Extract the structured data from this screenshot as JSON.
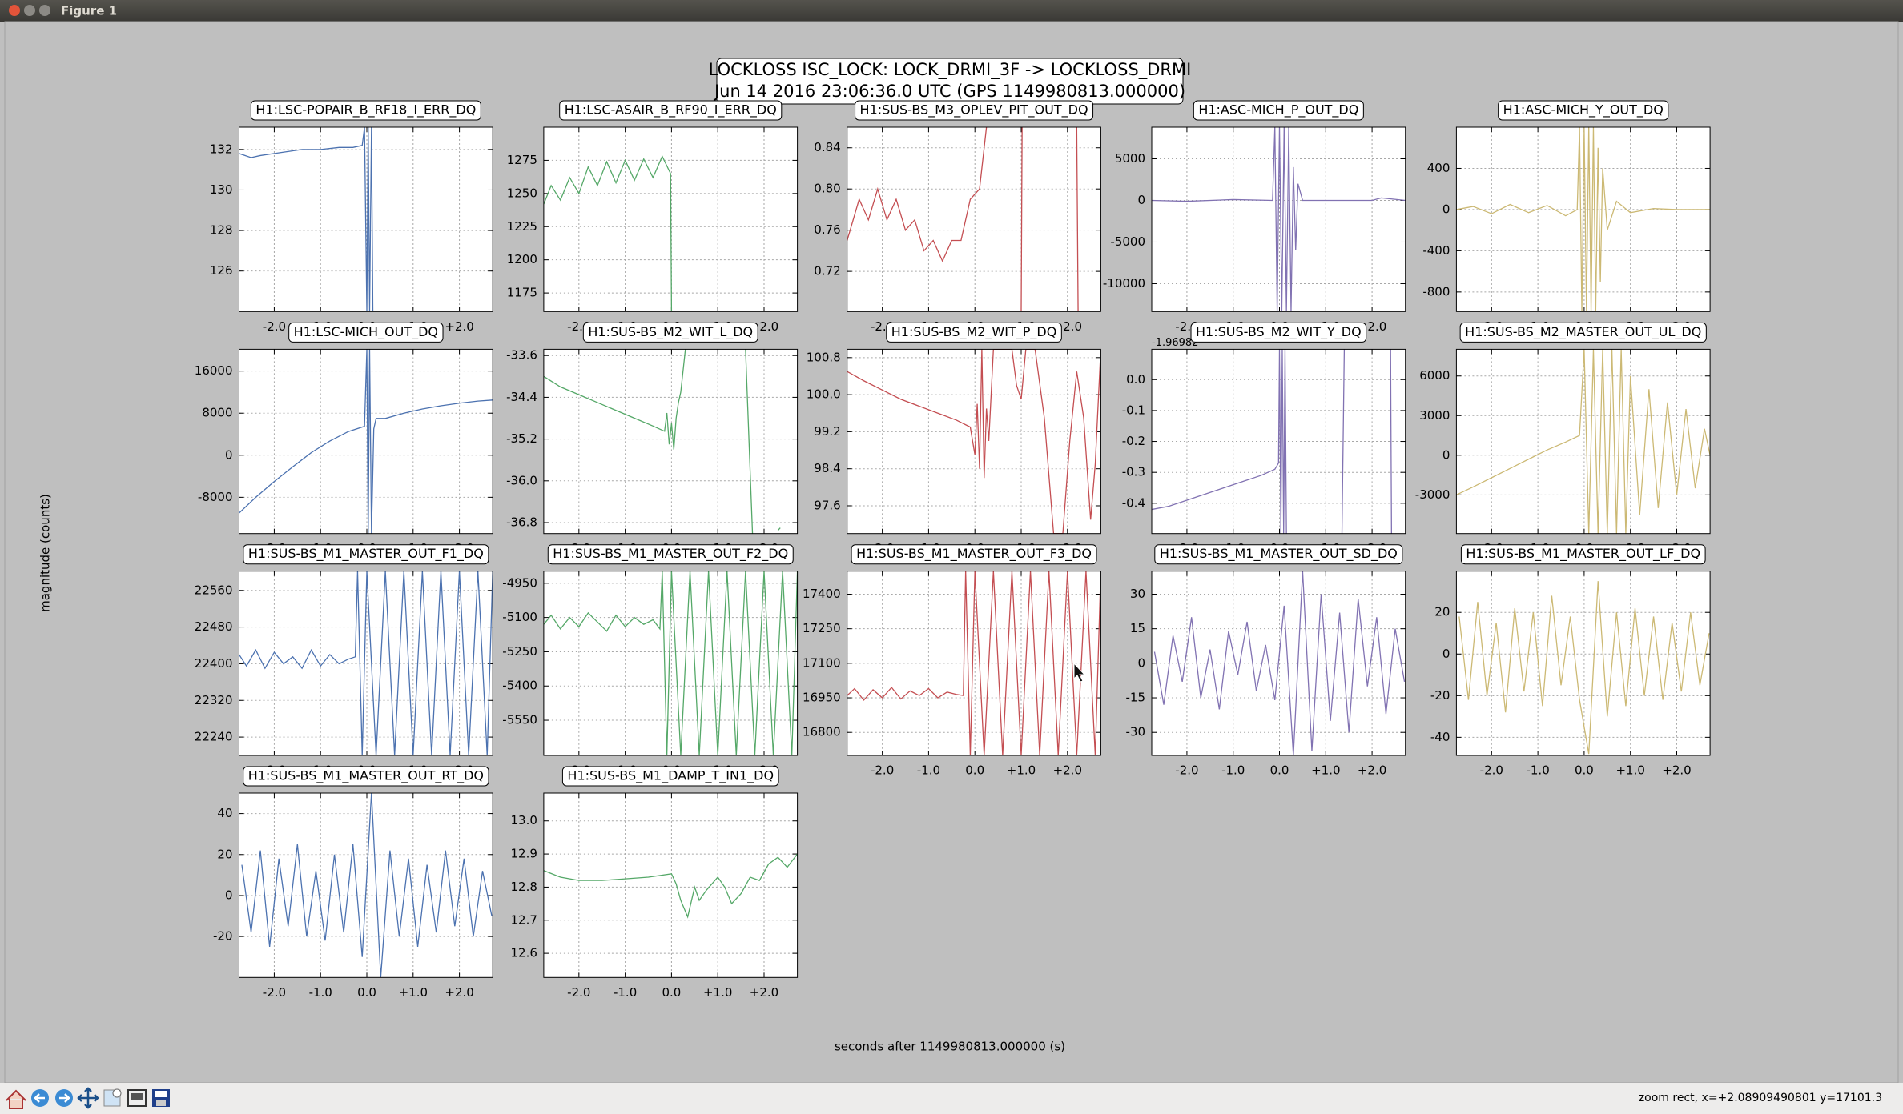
{
  "window": {
    "title": "Figure 1"
  },
  "figure": {
    "title": "LOCKLOSS ISC_LOCK: LOCK_DRMI_3F -> LOCKLOSS_DRMI",
    "subtitle": "Jun 14 2016 23:06:36.0 UTC (GPS 1149980813.000000)",
    "ylabel": "magnitude (counts)"
  },
  "x_axis": {
    "label": "seconds after 1149980813.000000 (s)",
    "xlim": [
      -2.76,
      2.72
    ],
    "xticks": [
      {
        "value": -2,
        "label": "-2.0"
      },
      {
        "value": -1,
        "label": "-1.0"
      },
      {
        "value": 0,
        "label": "0.0"
      },
      {
        "value": 1,
        "label": "+1.0"
      },
      {
        "value": 2,
        "label": "+2.0"
      }
    ]
  },
  "toolbar": {
    "status": "zoom rect, x=+2.08909490801 y=17101.3"
  },
  "chart_data": [
    {
      "type": "line",
      "title": "H1:LSC-POPAIR_B_RF18_I_ERR_DQ",
      "color": "#4c72b0",
      "grid": true,
      "ylim": [
        124.0,
        133.1
      ],
      "yticks": [
        126,
        128,
        130,
        132
      ],
      "x": [
        -2.76,
        -2.5,
        -2.3,
        -2.0,
        -1.7,
        -1.4,
        -1.0,
        -0.6,
        -0.3,
        -0.1,
        -0.05,
        0.0,
        0.03,
        0.06,
        0.1,
        0.13
      ],
      "values": [
        131.8,
        131.6,
        131.7,
        131.8,
        131.9,
        132.0,
        132.0,
        132.1,
        132.1,
        132.2,
        133.1,
        124.0,
        133.1,
        124.0,
        133.1,
        124.0
      ]
    },
    {
      "type": "line",
      "title": "H1:LSC-ASAIR_B_RF90_I_ERR_DQ",
      "color": "#55a868",
      "grid": true,
      "ylim": [
        1161,
        1300
      ],
      "yticks": [
        1175,
        1200,
        1225,
        1250,
        1275
      ],
      "x": [
        -2.76,
        -2.6,
        -2.4,
        -2.2,
        -2.0,
        -1.8,
        -1.6,
        -1.4,
        -1.2,
        -1.0,
        -0.8,
        -0.6,
        -0.4,
        -0.2,
        -0.02,
        0.0
      ],
      "values": [
        1242,
        1256,
        1245,
        1262,
        1250,
        1270,
        1256,
        1274,
        1258,
        1275,
        1260,
        1276,
        1262,
        1278,
        1265,
        1161
      ]
    },
    {
      "type": "line",
      "title": "H1:SUS-BS_M3_OPLEV_PIT_OUT_DQ",
      "color": "#c44e52",
      "grid": true,
      "ylim": [
        0.681,
        0.86
      ],
      "yticks": [
        0.72,
        0.76,
        {
          "value": 0.8,
          "label": "0.80"
        },
        0.84
      ],
      "x": [
        -2.76,
        -2.5,
        -2.3,
        -2.1,
        -1.9,
        -1.7,
        -1.5,
        -1.3,
        -1.1,
        -0.9,
        -0.7,
        -0.5,
        -0.3,
        -0.1,
        0.1,
        0.25,
        0.3,
        1.0,
        1.02,
        1.06,
        2.2,
        2.23
      ],
      "values": [
        0.75,
        0.79,
        0.77,
        0.8,
        0.77,
        0.79,
        0.76,
        0.77,
        0.74,
        0.75,
        0.73,
        0.75,
        0.75,
        0.79,
        0.8,
        0.86,
        null,
        0.681,
        0.86,
        null,
        0.86,
        0.681
      ]
    },
    {
      "type": "line",
      "title": "H1:ASC-MICH_P_OUT_DQ",
      "color": "#8172b2",
      "grid": true,
      "ylim": [
        -13350,
        8800
      ],
      "yticks": [
        -10000,
        -5000,
        0,
        5000
      ],
      "x": [
        -2.76,
        -2.0,
        -1.0,
        -0.15,
        -0.1,
        -0.05,
        0.0,
        0.05,
        0.1,
        0.15,
        0.2,
        0.25,
        0.3,
        0.35,
        0.4,
        0.5,
        1.0,
        2.0,
        2.2,
        2.72
      ],
      "values": [
        0,
        -100,
        100,
        0,
        8800,
        -13350,
        8800,
        -13350,
        8800,
        -13350,
        8800,
        -13350,
        4000,
        -6000,
        2000,
        0,
        0,
        0,
        300,
        0
      ]
    },
    {
      "type": "line",
      "title": "H1:ASC-MICH_Y_OUT_DQ",
      "color": "#ccb974",
      "grid": true,
      "ylim": [
        -990,
        800
      ],
      "yticks": [
        -800,
        -400,
        0,
        400
      ],
      "x": [
        -2.76,
        -2.4,
        -2.0,
        -1.6,
        -1.2,
        -0.8,
        -0.4,
        -0.15,
        -0.1,
        -0.05,
        0.0,
        0.05,
        0.1,
        0.15,
        0.2,
        0.25,
        0.3,
        0.35,
        0.4,
        0.5,
        0.7,
        1.0,
        1.5,
        2.0,
        2.72
      ],
      "values": [
        0,
        30,
        -40,
        50,
        -30,
        40,
        -60,
        0,
        800,
        -990,
        800,
        -990,
        800,
        -990,
        800,
        -990,
        600,
        -700,
        400,
        -200,
        80,
        -30,
        10,
        0,
        0
      ]
    },
    {
      "type": "line",
      "title": "H1:LSC-MICH_OUT_DQ",
      "color": "#4c72b0",
      "grid": true,
      "ylim": [
        -14900,
        20150
      ],
      "yticks": [
        -8000,
        0,
        8000,
        16000
      ],
      "x": [
        -2.76,
        -2.4,
        -2.0,
        -1.6,
        -1.2,
        -0.8,
        -0.4,
        -0.05,
        0.0,
        0.03,
        0.06,
        0.1,
        0.15,
        0.2,
        0.4,
        0.8,
        1.2,
        1.6,
        2.0,
        2.4,
        2.72
      ],
      "values": [
        -11000,
        -8000,
        -5000,
        -2200,
        500,
        2700,
        4500,
        5500,
        20150,
        -14900,
        20150,
        -14900,
        5000,
        7000,
        7000,
        8000,
        8800,
        9400,
        9900,
        10300,
        10500
      ]
    },
    {
      "type": "line",
      "title": "H1:SUS-BS_M2_WIT_L_DQ",
      "color": "#55a868",
      "grid": true,
      "ylim": [
        -37.01,
        -33.48
      ],
      "yticks": [
        -36.8,
        {
          "value": -36,
          "label": "-36.0"
        },
        -35.2,
        -34.4,
        -33.6
      ],
      "x": [
        -2.76,
        -2.4,
        -2.0,
        -1.6,
        -1.2,
        -0.8,
        -0.4,
        -0.15,
        -0.1,
        -0.05,
        0.0,
        0.05,
        0.1,
        0.15,
        0.2,
        0.3,
        0.32,
        1.6,
        1.75,
        1.8,
        2.3,
        2.35
      ],
      "values": [
        -34.0,
        -34.2,
        -34.35,
        -34.5,
        -34.65,
        -34.8,
        -34.95,
        -35.05,
        -34.7,
        -35.3,
        -34.9,
        -35.4,
        -34.8,
        -34.5,
        -34.3,
        -33.48,
        null,
        -33.48,
        -37.01,
        null,
        -36.95,
        -36.9
      ]
    },
    {
      "type": "line",
      "title": "H1:SUS-BS_M2_WIT_P_DQ",
      "color": "#c44e52",
      "grid": true,
      "ylim": [
        97.0,
        100.98
      ],
      "yticks": [
        97.6,
        98.4,
        99.2,
        {
          "value": 100,
          "label": "100.0"
        },
        100.8
      ],
      "x": [
        -2.76,
        -2.4,
        -2.0,
        -1.6,
        -1.2,
        -0.8,
        -0.4,
        -0.1,
        0.0,
        0.05,
        0.1,
        0.15,
        0.2,
        0.25,
        0.3,
        0.4,
        0.8,
        0.9,
        1.0,
        1.1,
        1.3,
        1.5,
        1.7,
        1.9,
        2.05,
        2.2,
        2.35,
        2.5,
        2.6,
        2.72
      ],
      "values": [
        100.5,
        100.3,
        100.1,
        99.9,
        99.75,
        99.6,
        99.45,
        99.3,
        98.7,
        99.8,
        98.4,
        100.98,
        98.2,
        99.7,
        99.0,
        100.98,
        100.98,
        100.2,
        99.9,
        100.98,
        100.98,
        99.5,
        97.0,
        97.0,
        99.0,
        100.5,
        99.5,
        97.3,
        98.5,
        100.98
      ]
    },
    {
      "type": "line",
      "title": "H1:SUS-BS_M2_WIT_Y_DQ",
      "color": "#8172b2",
      "grid": true,
      "offset_label": "-1.96982",
      "ylim": [
        -0.498,
        0.098
      ],
      "yticks": [
        -0.4,
        -0.3,
        -0.2,
        -0.1,
        {
          "value": 0,
          "label": "0.0"
        }
      ],
      "x": [
        -2.76,
        -2.4,
        -2.0,
        -1.6,
        -1.2,
        -0.8,
        -0.4,
        -0.1,
        -0.02,
        0.0,
        0.03,
        0.06,
        0.09,
        0.12,
        0.15,
        0.2,
        1.35,
        1.4,
        1.45,
        2.4,
        2.42
      ],
      "values": [
        -0.42,
        -0.41,
        -0.39,
        -0.37,
        -0.35,
        -0.33,
        -0.31,
        -0.29,
        -0.27,
        0.098,
        -0.498,
        0.098,
        -0.498,
        0.098,
        -0.498,
        null,
        -0.498,
        0.098,
        null,
        0.098,
        -0.498
      ]
    },
    {
      "type": "line",
      "title": "H1:SUS-BS_M2_MASTER_OUT_UL_DQ",
      "color": "#ccb974",
      "grid": true,
      "ylim": [
        -5930,
        8020
      ],
      "yticks": [
        -3000,
        0,
        3000,
        6000
      ],
      "x": [
        -2.76,
        -2.4,
        -2.0,
        -1.6,
        -1.2,
        -0.8,
        -0.4,
        -0.1,
        0.0,
        0.1,
        0.2,
        0.3,
        0.4,
        0.5,
        0.6,
        0.7,
        0.8,
        0.9,
        1.0,
        1.2,
        1.4,
        1.6,
        1.8,
        2.0,
        2.2,
        2.4,
        2.6,
        2.72
      ],
      "values": [
        -3000,
        -2400,
        -1700,
        -1000,
        -300,
        400,
        1000,
        1500,
        8020,
        -5930,
        8020,
        -5930,
        8020,
        -5930,
        8020,
        -5930,
        8020,
        -5930,
        6000,
        -4500,
        5000,
        -4000,
        4000,
        -3000,
        3500,
        -2500,
        2000,
        0
      ]
    },
    {
      "type": "line",
      "title": "H1:SUS-BS_M1_MASTER_OUT_F1_DQ",
      "color": "#4c72b0",
      "grid": true,
      "ylim": [
        22200,
        22602
      ],
      "yticks": [
        22240,
        22320,
        22400,
        22480,
        22560
      ],
      "x": [
        -2.76,
        -2.6,
        -2.4,
        -2.2,
        -2.0,
        -1.8,
        -1.6,
        -1.4,
        -1.2,
        -1.0,
        -0.8,
        -0.6,
        -0.4,
        -0.25,
        -0.2,
        -0.1,
        0.0,
        0.2,
        0.4,
        0.6,
        0.8,
        1.0,
        1.2,
        1.4,
        1.6,
        1.8,
        2.0,
        2.2,
        2.4,
        2.6,
        2.72
      ],
      "values": [
        22420,
        22395,
        22430,
        22390,
        22425,
        22400,
        22415,
        22390,
        22430,
        22395,
        22420,
        22400,
        22410,
        22415,
        22602,
        22200,
        22602,
        22200,
        22602,
        22200,
        22602,
        22200,
        22602,
        22200,
        22602,
        22200,
        22602,
        22200,
        22602,
        22200,
        22602
      ]
    },
    {
      "type": "line",
      "title": "H1:SUS-BS_M1_MASTER_OUT_F2_DQ",
      "color": "#55a868",
      "grid": true,
      "ylim": [
        -5704,
        -4897
      ],
      "yticks": [
        -5550,
        -5400,
        -5250,
        -5100,
        -4950
      ],
      "x": [
        -2.76,
        -2.6,
        -2.4,
        -2.2,
        -2.0,
        -1.8,
        -1.6,
        -1.4,
        -1.2,
        -1.0,
        -0.8,
        -0.6,
        -0.4,
        -0.25,
        -0.2,
        -0.1,
        0.0,
        0.2,
        0.4,
        0.6,
        0.8,
        1.0,
        1.2,
        1.4,
        1.6,
        1.8,
        2.0,
        2.2,
        2.4,
        2.6,
        2.72
      ],
      "values": [
        -5130,
        -5090,
        -5150,
        -5100,
        -5140,
        -5080,
        -5120,
        -5160,
        -5090,
        -5140,
        -5100,
        -5130,
        -5110,
        -5150,
        -4897,
        -5704,
        -4897,
        -5704,
        -4897,
        -5704,
        -4897,
        -5704,
        -4897,
        -5704,
        -4897,
        -5704,
        -4897,
        -5704,
        -4897,
        -5704,
        -4897
      ]
    },
    {
      "type": "line",
      "title": "H1:SUS-BS_M1_MASTER_OUT_F3_DQ",
      "color": "#c44e52",
      "grid": true,
      "ylim": [
        16700,
        17500
      ],
      "yticks": [
        16800,
        16950,
        17100,
        17250,
        17400
      ],
      "x": [
        -2.76,
        -2.6,
        -2.4,
        -2.2,
        -2.0,
        -1.8,
        -1.6,
        -1.4,
        -1.2,
        -1.0,
        -0.8,
        -0.6,
        -0.4,
        -0.25,
        -0.2,
        -0.1,
        0.0,
        0.2,
        0.4,
        0.6,
        0.8,
        1.0,
        1.2,
        1.4,
        1.6,
        1.8,
        2.0,
        2.2,
        2.4,
        2.6,
        2.72
      ],
      "values": [
        16960,
        16990,
        16940,
        16985,
        16950,
        16995,
        16945,
        16980,
        16960,
        16990,
        16950,
        16975,
        16965,
        16960,
        17500,
        16700,
        17500,
        16700,
        17500,
        16700,
        17500,
        16700,
        17500,
        16700,
        17500,
        16700,
        17500,
        16700,
        17500,
        16700,
        17500
      ]
    },
    {
      "type": "line",
      "title": "H1:SUS-BS_M1_MASTER_OUT_SD_DQ",
      "color": "#8172b2",
      "grid": true,
      "ylim": [
        -40,
        40
      ],
      "yticks": [
        -30,
        -15,
        0,
        15,
        30
      ],
      "x": [
        -2.7,
        -2.5,
        -2.3,
        -2.1,
        -1.9,
        -1.7,
        -1.5,
        -1.3,
        -1.1,
        -0.9,
        -0.7,
        -0.5,
        -0.3,
        -0.1,
        0.1,
        0.3,
        0.5,
        0.7,
        0.9,
        1.1,
        1.3,
        1.5,
        1.7,
        1.9,
        2.1,
        2.3,
        2.5,
        2.7
      ],
      "values": [
        5,
        -18,
        12,
        -8,
        20,
        -15,
        6,
        -20,
        14,
        -5,
        18,
        -12,
        8,
        -16,
        25,
        -40,
        40,
        -38,
        30,
        -25,
        22,
        -30,
        28,
        -10,
        20,
        -22,
        15,
        -8
      ]
    },
    {
      "type": "line",
      "title": "H1:SUS-BS_M1_MASTER_OUT_LF_DQ",
      "color": "#ccb974",
      "grid": true,
      "ylim": [
        -48.7,
        39.8
      ],
      "yticks": [
        -40,
        -20,
        0,
        20
      ],
      "x": [
        -2.7,
        -2.5,
        -2.3,
        -2.1,
        -1.9,
        -1.7,
        -1.5,
        -1.3,
        -1.1,
        -0.9,
        -0.7,
        -0.5,
        -0.3,
        -0.1,
        0.1,
        0.3,
        0.5,
        0.7,
        0.9,
        1.1,
        1.3,
        1.5,
        1.7,
        1.9,
        2.1,
        2.3,
        2.5,
        2.7
      ],
      "values": [
        18,
        -22,
        25,
        -20,
        15,
        -28,
        22,
        -18,
        20,
        -25,
        28,
        -15,
        18,
        -22,
        -48,
        35,
        -30,
        20,
        -25,
        22,
        -20,
        18,
        -22,
        15,
        -18,
        20,
        -15,
        10
      ]
    },
    {
      "type": "line",
      "title": "H1:SUS-BS_M1_MASTER_OUT_RT_DQ",
      "color": "#4c72b0",
      "grid": true,
      "ylim": [
        -40,
        50
      ],
      "yticks": [
        -20,
        0,
        20,
        40
      ],
      "x": [
        -2.7,
        -2.5,
        -2.3,
        -2.1,
        -1.9,
        -1.7,
        -1.5,
        -1.3,
        -1.1,
        -0.9,
        -0.7,
        -0.5,
        -0.3,
        -0.1,
        0.1,
        0.3,
        0.5,
        0.7,
        0.9,
        1.1,
        1.3,
        1.5,
        1.7,
        1.9,
        2.1,
        2.3,
        2.5,
        2.7
      ],
      "values": [
        15,
        -18,
        22,
        -25,
        18,
        -15,
        25,
        -20,
        12,
        -22,
        20,
        -18,
        25,
        -30,
        50,
        -40,
        22,
        -20,
        18,
        -25,
        15,
        -18,
        22,
        -15,
        18,
        -20,
        12,
        -10
      ]
    },
    {
      "type": "line",
      "title": "H1:SUS-BS_M1_DAMP_T_IN1_DQ",
      "color": "#55a868",
      "grid": true,
      "ylim": [
        12.527,
        13.084
      ],
      "yticks": [
        12.6,
        12.7,
        12.8,
        12.9,
        {
          "value": 13,
          "label": "13.0"
        }
      ],
      "x": [
        -2.76,
        -2.4,
        -2.0,
        -1.5,
        -1.0,
        -0.5,
        0.0,
        0.1,
        0.2,
        0.35,
        0.5,
        0.6,
        0.75,
        1.0,
        1.15,
        1.3,
        1.5,
        1.7,
        1.9,
        2.1,
        2.3,
        2.5,
        2.72
      ],
      "values": [
        12.85,
        12.83,
        12.82,
        12.82,
        12.825,
        12.83,
        12.84,
        12.81,
        12.76,
        12.71,
        12.8,
        12.76,
        12.79,
        12.83,
        12.8,
        12.75,
        12.78,
        12.83,
        12.82,
        12.87,
        12.89,
        12.86,
        12.9
      ]
    }
  ]
}
